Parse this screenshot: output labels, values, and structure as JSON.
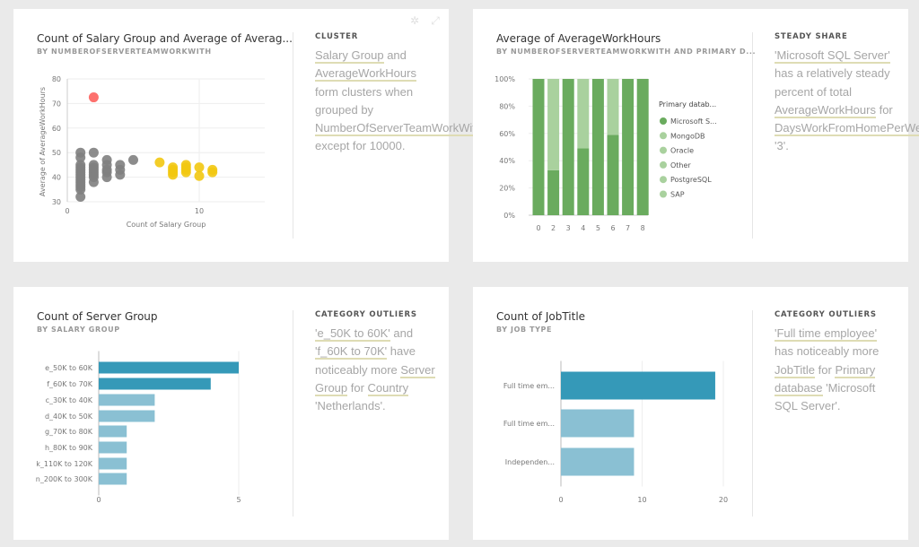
{
  "cards": [
    {
      "title": "Count of Salary Group and Average of Averag...",
      "subtitle": "BY NUMBEROFSERVERTEAMWORKWITH",
      "insight_type": "CLUSTER",
      "insight": [
        {
          "t": "Salary Group",
          "link": true
        },
        {
          "t": " and "
        },
        {
          "t": "AverageWorkHours",
          "link": true
        },
        {
          "t": " form clusters when grouped by "
        },
        {
          "t": "NumberOfServerTeamWorkWith",
          "link": true
        },
        {
          "t": " except for 10000."
        }
      ],
      "icons": [
        "pin-icon",
        "expand-icon"
      ]
    },
    {
      "title": "Average of AverageWorkHours",
      "subtitle": "BY NUMBEROFSERVERTEAMWORKWITH AND PRIMARY D...",
      "insight_type": "STEADY SHARE",
      "insight": [
        {
          "t": "'Microsoft SQL Server'",
          "link": true
        },
        {
          "t": " has a relatively steady percent of total "
        },
        {
          "t": "AverageWorkHours",
          "link": true
        },
        {
          "t": " for "
        },
        {
          "t": "DaysWorkFromHomePerWeek",
          "link": true
        },
        {
          "t": " '3'."
        }
      ]
    },
    {
      "title": "Count of Server Group",
      "subtitle": "BY SALARY GROUP",
      "insight_type": "CATEGORY OUTLIERS",
      "insight": [
        {
          "t": "'e_50K to 60K'",
          "link": true
        },
        {
          "t": " and "
        },
        {
          "t": "'f_60K to 70K'",
          "link": true
        },
        {
          "t": " have noticeably more "
        },
        {
          "t": "Server Group",
          "link": true
        },
        {
          "t": " for "
        },
        {
          "t": "Country",
          "link": true
        },
        {
          "t": " 'Netherlands'."
        }
      ]
    },
    {
      "title": "Count of JobTitle",
      "subtitle": "BY JOB TYPE",
      "insight_type": "CATEGORY OUTLIERS",
      "insight": [
        {
          "t": "'Full time employee'",
          "link": true
        },
        {
          "t": " has noticeably more "
        },
        {
          "t": "JobTitle",
          "link": true
        },
        {
          "t": " for "
        },
        {
          "t": "Primary database",
          "link": true
        },
        {
          "t": " 'Microsoft SQL Server'."
        }
      ]
    }
  ],
  "chart_data": [
    {
      "type": "scatter",
      "xlabel": "Count of Salary Group",
      "ylabel": "Average of AverageWorkHours",
      "xlim": [
        0,
        14.8
      ],
      "ylim": [
        30,
        80
      ],
      "xticks": [
        "0",
        "10"
      ],
      "yticks": [
        "30",
        "40",
        "50",
        "60",
        "70",
        "80"
      ],
      "colors": {
        "main": "#808080",
        "cluster": "#f2c811",
        "outlier": "#fd625e"
      },
      "series": [
        {
          "group": "main",
          "points": [
            [
              1,
              50
            ],
            [
              1,
              48
            ],
            [
              1,
              45
            ],
            [
              1,
              44
            ],
            [
              1,
              43
            ],
            [
              1,
              42
            ],
            [
              1,
              41
            ],
            [
              1,
              40
            ],
            [
              1,
              39
            ],
            [
              1,
              38
            ],
            [
              1,
              37
            ],
            [
              1,
              36
            ],
            [
              1,
              35
            ],
            [
              1,
              32
            ],
            [
              2,
              50
            ],
            [
              2,
              45
            ],
            [
              2,
              44
            ],
            [
              2,
              43
            ],
            [
              2,
              42
            ],
            [
              2,
              41
            ],
            [
              2,
              40
            ],
            [
              2,
              38
            ],
            [
              3,
              47
            ],
            [
              3,
              45
            ],
            [
              3,
              43
            ],
            [
              3,
              42
            ],
            [
              3,
              40
            ],
            [
              4,
              45
            ],
            [
              4,
              43
            ],
            [
              4,
              41
            ],
            [
              5,
              47
            ]
          ]
        },
        {
          "group": "cluster",
          "points": [
            [
              7,
              46
            ],
            [
              8,
              44
            ],
            [
              8,
              43
            ],
            [
              8,
              42
            ],
            [
              8,
              41
            ],
            [
              9,
              45
            ],
            [
              9,
              44
            ],
            [
              9,
              43
            ],
            [
              9,
              42
            ],
            [
              10,
              44
            ],
            [
              10,
              40.5
            ],
            [
              11,
              43
            ],
            [
              11,
              42
            ]
          ]
        },
        {
          "group": "outlier",
          "points": [
            [
              2,
              72.5
            ]
          ]
        }
      ]
    },
    {
      "type": "bar",
      "stacked": "100%",
      "categories": [
        "0",
        "2",
        "3",
        "4",
        "5",
        "6",
        "7",
        "8"
      ],
      "series": [
        {
          "name": "Microsoft S...",
          "values": [
            100,
            33,
            100,
            49,
            100,
            59,
            100,
            100
          ],
          "color": "#6aab5e"
        },
        {
          "values": [
            0,
            67,
            0,
            51,
            0,
            41,
            0,
            0
          ],
          "color": "#a9d19e"
        }
      ],
      "yticks": [
        "0%",
        "20%",
        "40%",
        "60%",
        "80%",
        "100%"
      ],
      "legend": {
        "title": "Primary datab...",
        "position": "right",
        "items": [
          {
            "name": "Microsoft S...",
            "color": "#6aab5e"
          },
          {
            "name": "MongoDB",
            "color": "#a9d19e"
          },
          {
            "name": "Oracle",
            "color": "#a9d19e"
          },
          {
            "name": "Other",
            "color": "#a9d19e"
          },
          {
            "name": "PostgreSQL",
            "color": "#a9d19e"
          },
          {
            "name": "SAP",
            "color": "#a9d19e"
          }
        ]
      }
    },
    {
      "type": "bar",
      "orientation": "horizontal",
      "categories": [
        "e_50K to 60K",
        "f_60K to 70K",
        "c_30K to 40K",
        "d_40K to 50K",
        "g_70K to 80K",
        "h_80K to 90K",
        "k_110K to 120K",
        "n_200K to 300K"
      ],
      "values": [
        5,
        4,
        2,
        2,
        1,
        1,
        1,
        1
      ],
      "highlight": [
        true,
        true,
        false,
        false,
        false,
        false,
        false,
        false
      ],
      "xticks": [
        "0",
        "5"
      ],
      "xlim": [
        0,
        5
      ],
      "colors": {
        "highlight": "#3599b8",
        "normal": "#8ac0d3"
      }
    },
    {
      "type": "bar",
      "orientation": "horizontal",
      "categories": [
        "Full time em...",
        "Full time em...",
        "Independen..."
      ],
      "values": [
        19,
        9,
        9
      ],
      "highlight": [
        true,
        false,
        false
      ],
      "xticks": [
        "0",
        "10",
        "20"
      ],
      "xlim": [
        0,
        20
      ],
      "colors": {
        "highlight": "#3599b8",
        "normal": "#8ac0d3"
      }
    }
  ]
}
